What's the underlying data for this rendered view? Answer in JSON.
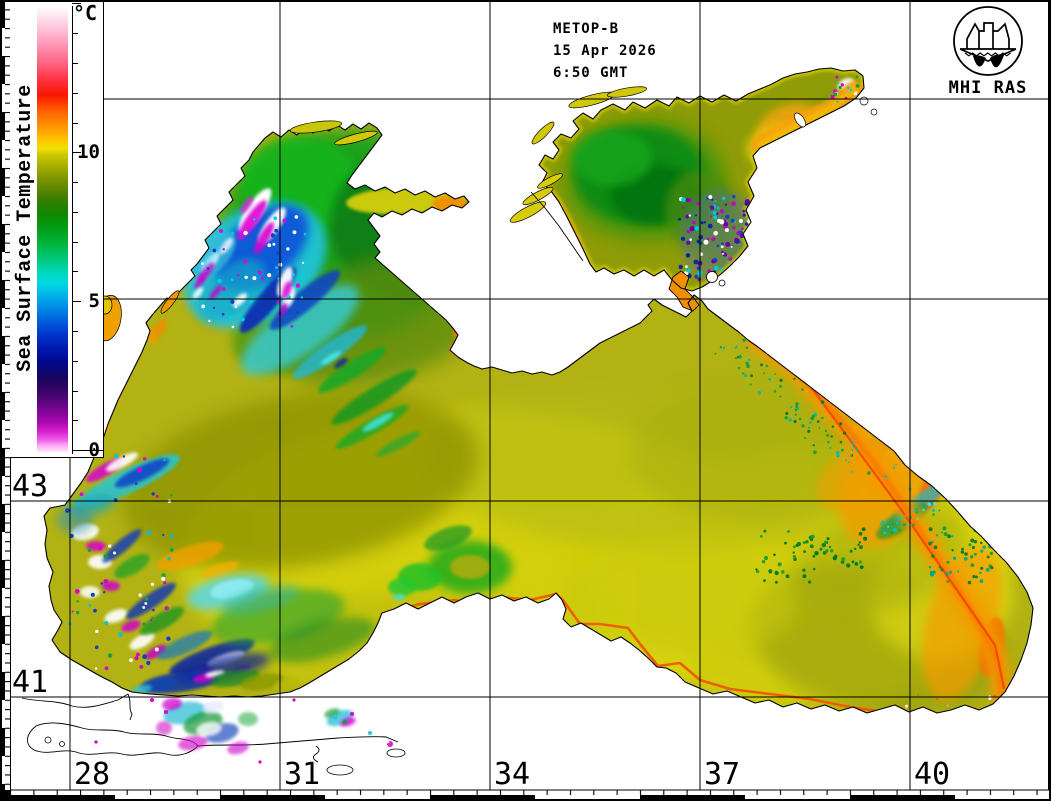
{
  "header": {
    "satellite": "METOP-B",
    "date": "15 Apr 2026",
    "time": "6:50 GMT"
  },
  "logo": {
    "caption": "MHI RAS"
  },
  "colorbar": {
    "title": "Sea Surface Temperature",
    "unit": "°C",
    "min": 0,
    "max": 15,
    "minor_tick_step": 1,
    "major_tick_labels": [
      "10",
      "5",
      "0"
    ],
    "major_tick_values": [
      10,
      5,
      0
    ],
    "palette": [
      [
        15,
        "#ffffff"
      ],
      [
        14.5,
        "#ffd8e8"
      ],
      [
        14,
        "#ffb0cc"
      ],
      [
        13.5,
        "#ff86a6"
      ],
      [
        13,
        "#ff5c7a"
      ],
      [
        12.5,
        "#ff3040"
      ],
      [
        12,
        "#f81800"
      ],
      [
        11.5,
        "#ff5c00"
      ],
      [
        11,
        "#ff9000"
      ],
      [
        10.5,
        "#ffc400"
      ],
      [
        10.2,
        "#f0e000"
      ],
      [
        10,
        "#ccc800"
      ],
      [
        9.5,
        "#9aa800"
      ],
      [
        9,
        "#6a8c00"
      ],
      [
        8.5,
        "#3a7c00"
      ],
      [
        8,
        "#0e8800"
      ],
      [
        7.5,
        "#00a018"
      ],
      [
        7,
        "#00b43c"
      ],
      [
        6.5,
        "#00c878"
      ],
      [
        6,
        "#00d8c0"
      ],
      [
        5.7,
        "#00d8e0"
      ],
      [
        5.4,
        "#00c0e8"
      ],
      [
        5,
        "#0098e8"
      ],
      [
        4.5,
        "#0068e0"
      ],
      [
        4,
        "#0038d0"
      ],
      [
        3.5,
        "#0018b0"
      ],
      [
        3,
        "#000888"
      ],
      [
        2.5,
        "#180460"
      ],
      [
        2,
        "#3c0468"
      ],
      [
        1.5,
        "#70058c"
      ],
      [
        1,
        "#a808b0"
      ],
      [
        0.7,
        "#d81ed0"
      ],
      [
        0.4,
        "#f060e8"
      ],
      [
        0.2,
        "#ffb0f4"
      ],
      [
        0,
        "#ffe4fb"
      ]
    ]
  },
  "grid": {
    "latitude_labels": [
      "43",
      "41"
    ],
    "longitude_labels": [
      "28",
      "31",
      "34",
      "37",
      "40"
    ]
  },
  "map": {
    "land_color": "#ffffff",
    "coast_color": "#000000",
    "grid_color": "#000000",
    "frame_color": "#000000",
    "key_colors": {
      "basin_yellow": "#d6d210",
      "basin_olive": "#8f9406",
      "shelf_green": "#12a01a",
      "cold_cyan": "#20c4e4",
      "cold_blue": "#1050d8",
      "cold_magenta": "#d800d0",
      "cloud_white": "#ffffff",
      "warm_orange": "#f09000"
    }
  }
}
